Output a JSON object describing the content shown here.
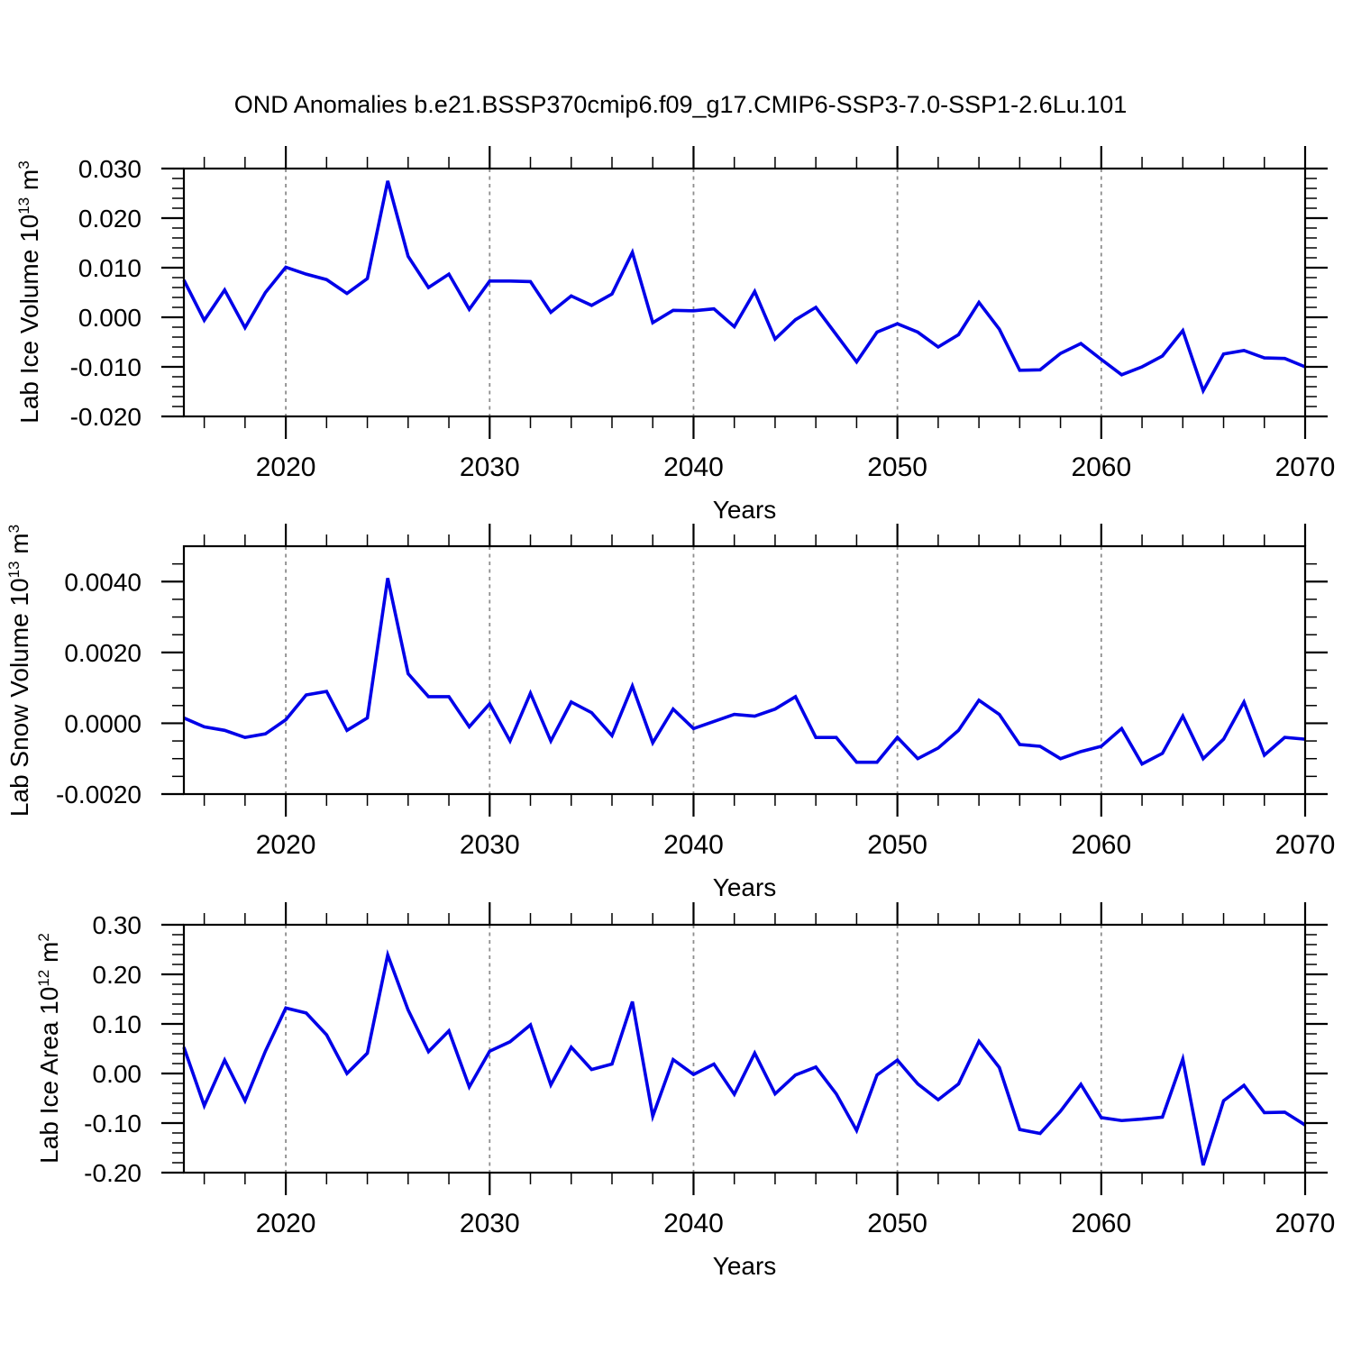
{
  "title": "OND Anomalies b.e21.BSSP370cmip6.f09_g17.CMIP6-SSP3-7.0-SSP1-2.6Lu.101",
  "xlabel": "Years",
  "line_color": "#0000E8",
  "grid_color": "#8E8E8E",
  "frame_color": "#000000",
  "years": [
    2015,
    2016,
    2017,
    2018,
    2019,
    2020,
    2021,
    2022,
    2023,
    2024,
    2025,
    2026,
    2027,
    2028,
    2029,
    2030,
    2031,
    2032,
    2033,
    2034,
    2035,
    2036,
    2037,
    2038,
    2039,
    2040,
    2041,
    2042,
    2043,
    2044,
    2045,
    2046,
    2047,
    2048,
    2049,
    2050,
    2051,
    2052,
    2053,
    2054,
    2055,
    2056,
    2057,
    2058,
    2059,
    2060,
    2061,
    2062,
    2063,
    2064,
    2065,
    2066,
    2067,
    2068,
    2069,
    2070
  ],
  "xlim": [
    2015,
    2070
  ],
  "xtick_values": [
    2020,
    2030,
    2040,
    2050,
    2060,
    2070
  ],
  "xtick_labels": [
    "2020",
    "2030",
    "2040",
    "2050",
    "2060",
    "2070"
  ],
  "xminor_step": 2,
  "grid_years": [
    2020,
    2030,
    2040,
    2050,
    2060
  ],
  "chart_data": [
    {
      "type": "line",
      "id": "lab-ice-volume",
      "ylabel_parts": [
        "Lab Ice Volume 10",
        "13",
        " m",
        "3"
      ],
      "ylim": [
        -0.02,
        0.03
      ],
      "ytick_values": [
        0.03,
        0.02,
        0.01,
        0.0,
        -0.01,
        -0.02
      ],
      "ytick_labels": [
        "0.030",
        "0.020",
        "0.010",
        "0.000",
        "-0.010",
        "-0.020"
      ],
      "ymajor_step": 0.01,
      "yminor_step": 0.002,
      "values": [
        0.0075,
        -0.0006,
        0.0055,
        -0.0021,
        0.005,
        0.0101,
        0.0087,
        0.0076,
        0.0048,
        0.0078,
        0.0275,
        0.0123,
        0.006,
        0.0087,
        0.0016,
        0.0073,
        0.0073,
        0.0072,
        0.001,
        0.0043,
        0.0024,
        0.0047,
        0.0131,
        -0.0011,
        0.0014,
        0.0013,
        0.0017,
        -0.0019,
        0.0052,
        -0.0044,
        -0.0005,
        0.002,
        -0.0035,
        -0.009,
        -0.003,
        -0.0013,
        -0.003,
        -0.006,
        -0.0035,
        0.003,
        -0.0024,
        -0.0107,
        -0.0106,
        -0.0073,
        -0.0053,
        -0.0085,
        -0.0116,
        -0.01,
        -0.0078,
        -0.0027,
        -0.0148,
        -0.0074,
        -0.0067,
        -0.0082,
        -0.0083,
        -0.01
      ]
    },
    {
      "type": "line",
      "id": "lab-snow-volume",
      "ylabel_parts": [
        "Lab Snow Volume 10",
        "13",
        " m",
        "3"
      ],
      "ylim": [
        -0.002,
        0.005
      ],
      "ytick_values": [
        0.004,
        0.002,
        0.0,
        -0.002
      ],
      "ytick_labels": [
        "0.0040",
        "0.0020",
        "0.0000",
        "-0.0020"
      ],
      "ymajor_step": 0.002,
      "yminor_step": 0.0005,
      "values": [
        0.00015,
        -0.0001,
        -0.0002,
        -0.0004,
        -0.0003,
        0.0001,
        0.0008,
        0.0009,
        -0.0002,
        0.00015,
        0.0041,
        0.0014,
        0.00075,
        0.00075,
        -0.0001,
        0.00055,
        -0.0005,
        0.00085,
        -0.0005,
        0.0006,
        0.0003,
        -0.00035,
        0.00105,
        -0.00055,
        0.0004,
        -0.00015,
        5e-05,
        0.00025,
        0.0002,
        0.0004,
        0.00075,
        -0.0004,
        -0.0004,
        -0.0011,
        -0.0011,
        -0.0004,
        -0.001,
        -0.0007,
        -0.0002,
        0.00065,
        0.00025,
        -0.0006,
        -0.00065,
        -0.001,
        -0.0008,
        -0.00065,
        -0.00015,
        -0.00115,
        -0.00085,
        0.0002,
        -0.001,
        -0.00045,
        0.0006,
        -0.0009,
        -0.0004,
        -0.00045
      ]
    },
    {
      "type": "line",
      "id": "lab-ice-area",
      "ylabel_parts": [
        "Lab Ice Area 10",
        "12",
        " m",
        "2"
      ],
      "ylim": [
        -0.2,
        0.3
      ],
      "ytick_values": [
        0.3,
        0.2,
        0.1,
        0.0,
        -0.1,
        -0.2
      ],
      "ytick_labels": [
        "0.30",
        "0.20",
        "0.10",
        "0.00",
        "-0.10",
        "-0.20"
      ],
      "ymajor_step": 0.1,
      "yminor_step": 0.02,
      "values": [
        0.053,
        -0.065,
        0.027,
        -0.055,
        0.045,
        0.132,
        0.122,
        0.078,
        0.0,
        0.041,
        0.239,
        0.128,
        0.044,
        0.086,
        -0.027,
        0.045,
        0.064,
        0.098,
        -0.023,
        0.053,
        0.008,
        0.019,
        0.145,
        -0.086,
        0.028,
        -0.002,
        0.019,
        -0.042,
        0.041,
        -0.041,
        -0.003,
        0.013,
        -0.041,
        -0.115,
        -0.003,
        0.027,
        -0.021,
        -0.053,
        -0.021,
        0.065,
        0.012,
        -0.113,
        -0.121,
        -0.076,
        -0.022,
        -0.089,
        -0.095,
        -0.092,
        -0.088,
        0.029,
        -0.185,
        -0.055,
        -0.024,
        -0.079,
        -0.078,
        -0.104
      ]
    }
  ]
}
